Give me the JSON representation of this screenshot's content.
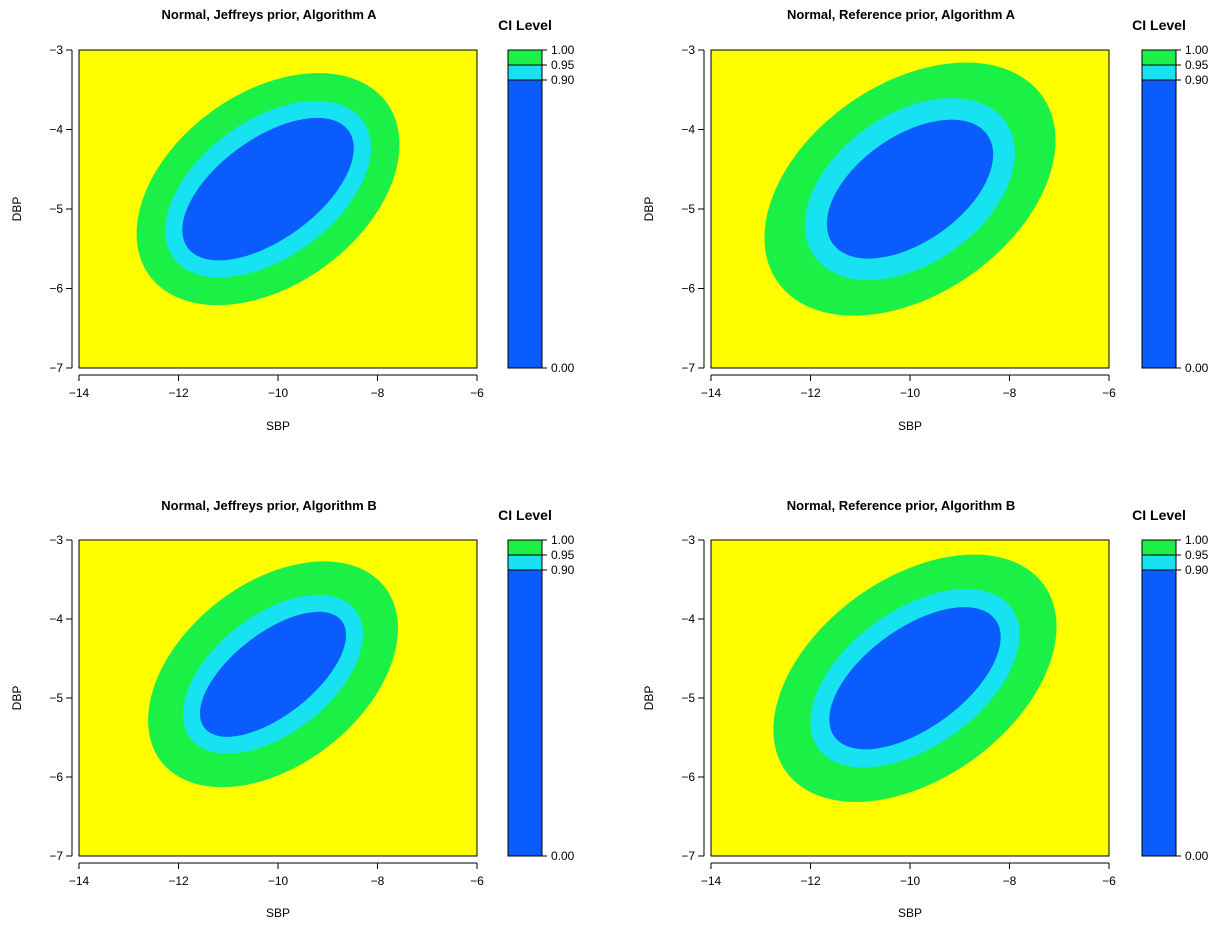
{
  "colors": {
    "level_0_90": "#0b5cff",
    "level_0_95": "#16e2f2",
    "level_1_00": "#1bf047",
    "outside": "#ffff00"
  },
  "chart_data": [
    {
      "type": "contour",
      "title": "Normal, Jeffreys prior, Algorithm A",
      "xlabel": "SBP",
      "ylabel": "DBP",
      "xlim": [
        -14,
        -6
      ],
      "ylim": [
        -7,
        -3
      ],
      "xticks": [
        "−14",
        "−12",
        "−10",
        "−8",
        "−6"
      ],
      "yticks": [
        "−7",
        "−6",
        "−5",
        "−4",
        "−3"
      ],
      "legend": {
        "title": "CI Level",
        "levels": [
          "0.00",
          "0.90",
          "0.95",
          "1.00"
        ],
        "colors": [
          "#0b5cff",
          "#16e2f2",
          "#1bf047"
        ]
      },
      "region": {
        "center": [
          -10.2,
          -4.75
        ],
        "angle_deg": 36,
        "core": [
          2.0,
          0.55
        ],
        "ring_095": [
          2.35,
          0.75
        ],
        "ring_100": [
          2.95,
          1.05
        ]
      }
    },
    {
      "type": "contour",
      "title": "Normal, Reference prior, Algorithm A",
      "xlabel": "SBP",
      "ylabel": "DBP",
      "xlim": [
        -14,
        -6
      ],
      "ylim": [
        -7,
        -3
      ],
      "xticks": [
        "−14",
        "−12",
        "−10",
        "−8",
        "−6"
      ],
      "yticks": [
        "−7",
        "−6",
        "−5",
        "−4",
        "−3"
      ],
      "legend": {
        "title": "CI Level",
        "levels": [
          "0.00",
          "0.90",
          "0.95",
          "1.00"
        ],
        "colors": [
          "#0b5cff",
          "#16e2f2",
          "#1bf047"
        ]
      },
      "region": {
        "center": [
          -10.0,
          -4.75
        ],
        "angle_deg": 35,
        "core": [
          1.9,
          0.58
        ],
        "ring_095": [
          2.35,
          0.82
        ],
        "ring_100": [
          3.25,
          1.15
        ]
      }
    },
    {
      "type": "contour",
      "title": "Normal, Jeffreys prior, Algorithm B",
      "xlabel": "SBP",
      "ylabel": "DBP",
      "xlim": [
        -14,
        -6
      ],
      "ylim": [
        -7,
        -3
      ],
      "xticks": [
        "−14",
        "−12",
        "−10",
        "−8",
        "−6"
      ],
      "yticks": [
        "−7",
        "−6",
        "−5",
        "−4",
        "−3"
      ],
      "legend": {
        "title": "CI Level",
        "levels": [
          "0.00",
          "0.90",
          "0.95",
          "1.00"
        ],
        "colors": [
          "#0b5cff",
          "#16e2f2",
          "#1bf047"
        ]
      },
      "region": {
        "center": [
          -10.1,
          -4.7
        ],
        "angle_deg": 38,
        "core": [
          1.75,
          0.45
        ],
        "ring_095": [
          2.1,
          0.65
        ],
        "ring_100": [
          2.85,
          1.0
        ]
      }
    },
    {
      "type": "contour",
      "title": "Normal, Reference prior, Algorithm B",
      "xlabel": "SBP",
      "ylabel": "DBP",
      "xlim": [
        -14,
        -6
      ],
      "ylim": [
        -7,
        -3
      ],
      "xticks": [
        "−14",
        "−12",
        "−10",
        "−8",
        "−6"
      ],
      "yticks": [
        "−7",
        "−6",
        "−5",
        "−4",
        "−3"
      ],
      "legend": {
        "title": "CI Level",
        "levels": [
          "0.00",
          "0.90",
          "0.95",
          "1.00"
        ],
        "colors": [
          "#0b5cff",
          "#16e2f2",
          "#1bf047"
        ]
      },
      "region": {
        "center": [
          -9.9,
          -4.75
        ],
        "angle_deg": 36,
        "core": [
          2.0,
          0.55
        ],
        "ring_095": [
          2.4,
          0.75
        ],
        "ring_100": [
          3.2,
          1.1
        ]
      }
    }
  ]
}
